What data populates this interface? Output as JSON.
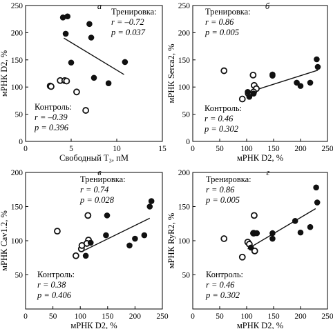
{
  "chart_data": [
    {
      "type": "scatter",
      "panel_letter": "а",
      "xlabel": "Свободный Т₃, пМ",
      "ylabel": "мРНК D2, %",
      "xlim": [
        0,
        15
      ],
      "ylim": [
        0,
        250
      ],
      "xticks": [
        "0",
        "5",
        "10",
        "15"
      ],
      "yticks": [
        "0",
        "50",
        "100",
        "150",
        "200",
        "250"
      ],
      "training_points": [
        [
          4.1,
          228
        ],
        [
          4.6,
          230
        ],
        [
          4.4,
          198
        ],
        [
          7.0,
          216
        ],
        [
          7.2,
          191
        ],
        [
          5.0,
          145
        ],
        [
          7.5,
          117
        ],
        [
          9.1,
          107
        ],
        [
          10.9,
          146
        ]
      ],
      "control_points": [
        [
          2.7,
          102
        ],
        [
          2.8,
          101
        ],
        [
          3.8,
          112
        ],
        [
          4.3,
          112
        ],
        [
          4.5,
          111
        ],
        [
          5.6,
          91
        ],
        [
          6.6,
          57
        ]
      ],
      "fit_line": [
        [
          4.2,
          190
        ],
        [
          10.8,
          123
        ]
      ],
      "annot_training": {
        "title": "Тренировка:",
        "r": "r = –0.72",
        "p": "p = 0.037",
        "position": "top-right"
      },
      "annot_control": {
        "title": "Контроль:",
        "r": "r = –0.39",
        "p": "p = 0.396",
        "position": "bottom-left"
      }
    },
    {
      "type": "scatter",
      "panel_letter": "б",
      "xlabel": "мРНК D2, %",
      "ylabel": "мРНК Serca2, %",
      "xlim": [
        0,
        250
      ],
      "ylim": [
        0,
        250
      ],
      "xticks": [
        "0",
        "50",
        "100",
        "150",
        "200",
        "250"
      ],
      "yticks": [
        "0",
        "50",
        "100",
        "150",
        "200",
        "250"
      ],
      "training_points": [
        [
          105,
          82
        ],
        [
          113,
          88
        ],
        [
          102,
          91
        ],
        [
          148,
          123
        ],
        [
          148,
          121
        ],
        [
          193,
          108
        ],
        [
          200,
          102
        ],
        [
          218,
          108
        ],
        [
          230,
          151
        ],
        [
          232,
          137
        ]
      ],
      "control_points": [
        [
          58,
          130
        ],
        [
          92,
          78
        ],
        [
          103,
          88
        ],
        [
          112,
          122
        ],
        [
          114,
          103
        ],
        [
          118,
          97
        ],
        [
          113,
          91
        ]
      ],
      "fit_line": [
        [
          105,
          91
        ],
        [
          232,
          131
        ]
      ],
      "annot_training": {
        "title": "Тренировка:",
        "r": "r = 0.86",
        "p": "p = 0.005",
        "position": "top-right"
      },
      "annot_control": {
        "title": "Контроль:",
        "r": "r = 0.46",
        "p": "p = 0.302",
        "position": "bottom-left"
      }
    },
    {
      "type": "scatter",
      "panel_letter": "в",
      "xlabel": "мРНК D2, %",
      "ylabel": "мРНК Cav1.2, %",
      "xlim": [
        0,
        250
      ],
      "ylim": [
        0,
        200
      ],
      "xticks": [
        "0",
        "50",
        "100",
        "150",
        "200",
        "250"
      ],
      "yticks": [
        "50",
        "100",
        "150",
        "200"
      ],
      "training_points": [
        [
          110,
          78
        ],
        [
          119,
          97
        ],
        [
          147,
          108
        ],
        [
          149,
          137
        ],
        [
          190,
          93
        ],
        [
          200,
          103
        ],
        [
          217,
          108
        ],
        [
          227,
          150
        ],
        [
          230,
          158
        ]
      ],
      "control_points": [
        [
          58,
          114
        ],
        [
          92,
          78
        ],
        [
          102,
          88
        ],
        [
          103,
          93
        ],
        [
          114,
          137
        ],
        [
          115,
          101
        ],
        [
          112,
          96
        ]
      ],
      "fit_line": [
        [
          105,
          85
        ],
        [
          227,
          133
        ]
      ],
      "annot_training": {
        "title": "Тренировка:",
        "r": "r = 0.74",
        "p": "p = 0.028",
        "position": "top-right"
      },
      "annot_control": {
        "title": "Контроль:",
        "r": "r = 0.38",
        "p": "p = 0.406",
        "position": "bottom-left"
      }
    },
    {
      "type": "scatter",
      "panel_letter": "г",
      "xlabel": "мРНК D2, %",
      "ylabel": "мРНК RyR2, %",
      "xlim": [
        0,
        250
      ],
      "ylim": [
        0,
        200
      ],
      "xticks": [
        "0",
        "50",
        "100",
        "150",
        "200",
        "250"
      ],
      "yticks": [
        "50",
        "100",
        "150",
        "200"
      ],
      "training_points": [
        [
          108,
          90
        ],
        [
          112,
          111
        ],
        [
          119,
          111
        ],
        [
          148,
          103
        ],
        [
          148,
          111
        ],
        [
          190,
          129
        ],
        [
          200,
          112
        ],
        [
          218,
          120
        ],
        [
          229,
          178
        ],
        [
          231,
          156
        ]
      ],
      "control_points": [
        [
          58,
          103
        ],
        [
          92,
          76
        ],
        [
          102,
          98
        ],
        [
          105,
          95
        ],
        [
          113,
          111
        ],
        [
          115,
          85
        ],
        [
          114,
          137
        ]
      ],
      "fit_line": [
        [
          102,
          88
        ],
        [
          228,
          147
        ]
      ],
      "annot_training": {
        "title": "Тренировка:",
        "r": "r = 0.86",
        "p": "p = 0.005",
        "position": "top-right"
      },
      "annot_control": {
        "title": "Контроль:",
        "r": "r = 0.46",
        "p": "p = 0.302",
        "position": "bottom-left"
      }
    }
  ]
}
